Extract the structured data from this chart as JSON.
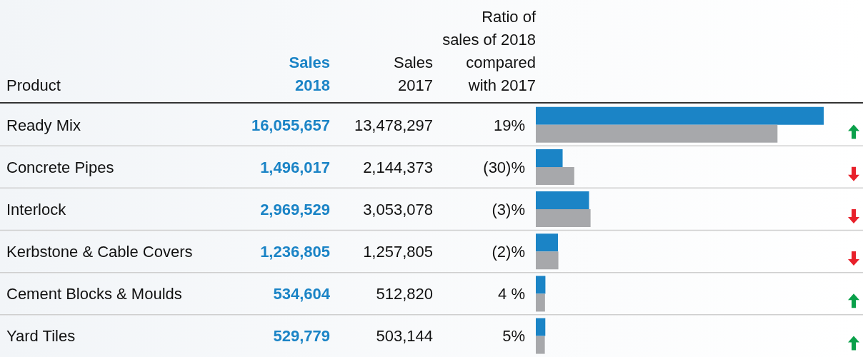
{
  "chart_data": {
    "type": "bar",
    "orientation": "horizontal",
    "ylabel": "Product",
    "categories": [
      "Ready Mix",
      "Concrete Pipes",
      "Interlock",
      "Kerbstone & Cable Covers",
      "Cement Blocks & Moulds",
      "Yard Tiles"
    ],
    "series": [
      {
        "name": "Sales 2018",
        "color": "#1b84c6",
        "values": [
          16055657,
          1496017,
          2969529,
          1236805,
          534604,
          529779
        ],
        "value_labels": [
          "16,055,657",
          "1,496,017",
          "2,969,529",
          "1,236,805",
          "534,604",
          "529,779"
        ]
      },
      {
        "color": "#a7a8ab",
        "values": [
          13478297,
          2144373,
          3053078,
          1257805,
          512820,
          503144
        ],
        "value_labels": [
          "13,478,297",
          "2,144,373",
          "3,053,078",
          "1,257,805",
          "512,820",
          "503,144"
        ]
      }
    ],
    "tick_labels": "y",
    "annotations": [
      "Sales 2017",
      "Ratio of sales of 2018 compared with 2017",
      "19%",
      "(30)%",
      "(3)%",
      "(2)%",
      "4 %",
      "5%"
    ]
  }
}
